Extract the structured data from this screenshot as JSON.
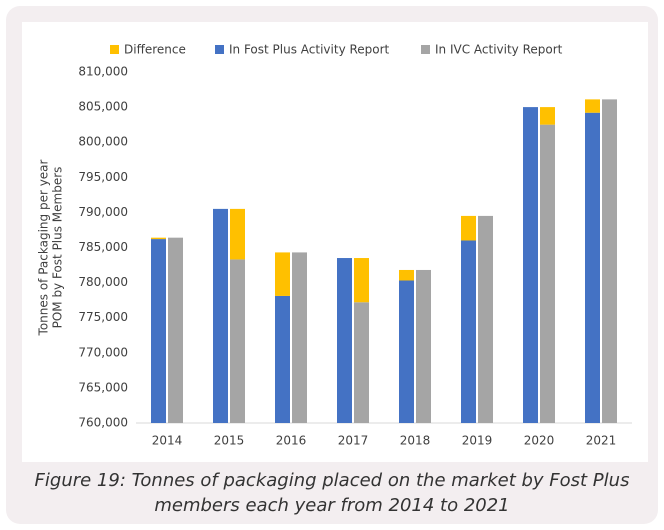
{
  "chart_data": {
    "type": "bar",
    "y_label_lines": [
      "Tonnes of Packaging per year",
      "POM by Fost Plus Members"
    ],
    "categories": [
      "2014",
      "2015",
      "2016",
      "2017",
      "2018",
      "2019",
      "2020",
      "2021"
    ],
    "series": [
      {
        "name": "Difference",
        "color": "#ffc000",
        "values": [
          200,
          7200,
          6200,
          6300,
          1500,
          3500,
          2500,
          1900
        ]
      },
      {
        "name": "In Fost Plus Activity Report",
        "color": "#4472c4",
        "values": [
          786200,
          790500,
          778100,
          783500,
          780300,
          786000,
          805000,
          804200
        ]
      },
      {
        "name": "In IVC Activity Report",
        "color": "#a5a5a5",
        "values": [
          786400,
          783300,
          784300,
          777200,
          781800,
          789500,
          802500,
          806100
        ]
      }
    ],
    "ylim": [
      760000,
      810000
    ],
    "yticks": [
      {
        "value": 760000,
        "label": "760,000"
      },
      {
        "value": 765000,
        "label": "765,000"
      },
      {
        "value": 770000,
        "label": "770,000"
      },
      {
        "value": 775000,
        "label": "775,000"
      },
      {
        "value": 780000,
        "label": "780,000"
      },
      {
        "value": 785000,
        "label": "785,000"
      },
      {
        "value": 790000,
        "label": "790,000"
      },
      {
        "value": 795000,
        "label": "795,000"
      },
      {
        "value": 800000,
        "label": "800,000"
      },
      {
        "value": 805000,
        "label": "805,000"
      },
      {
        "value": 810000,
        "label": "810,000"
      }
    ],
    "legend": "top",
    "caption": "Figure 19: Tonnes of packaging placed on the market by Fost Plus members each year from 2014 to 2021"
  }
}
